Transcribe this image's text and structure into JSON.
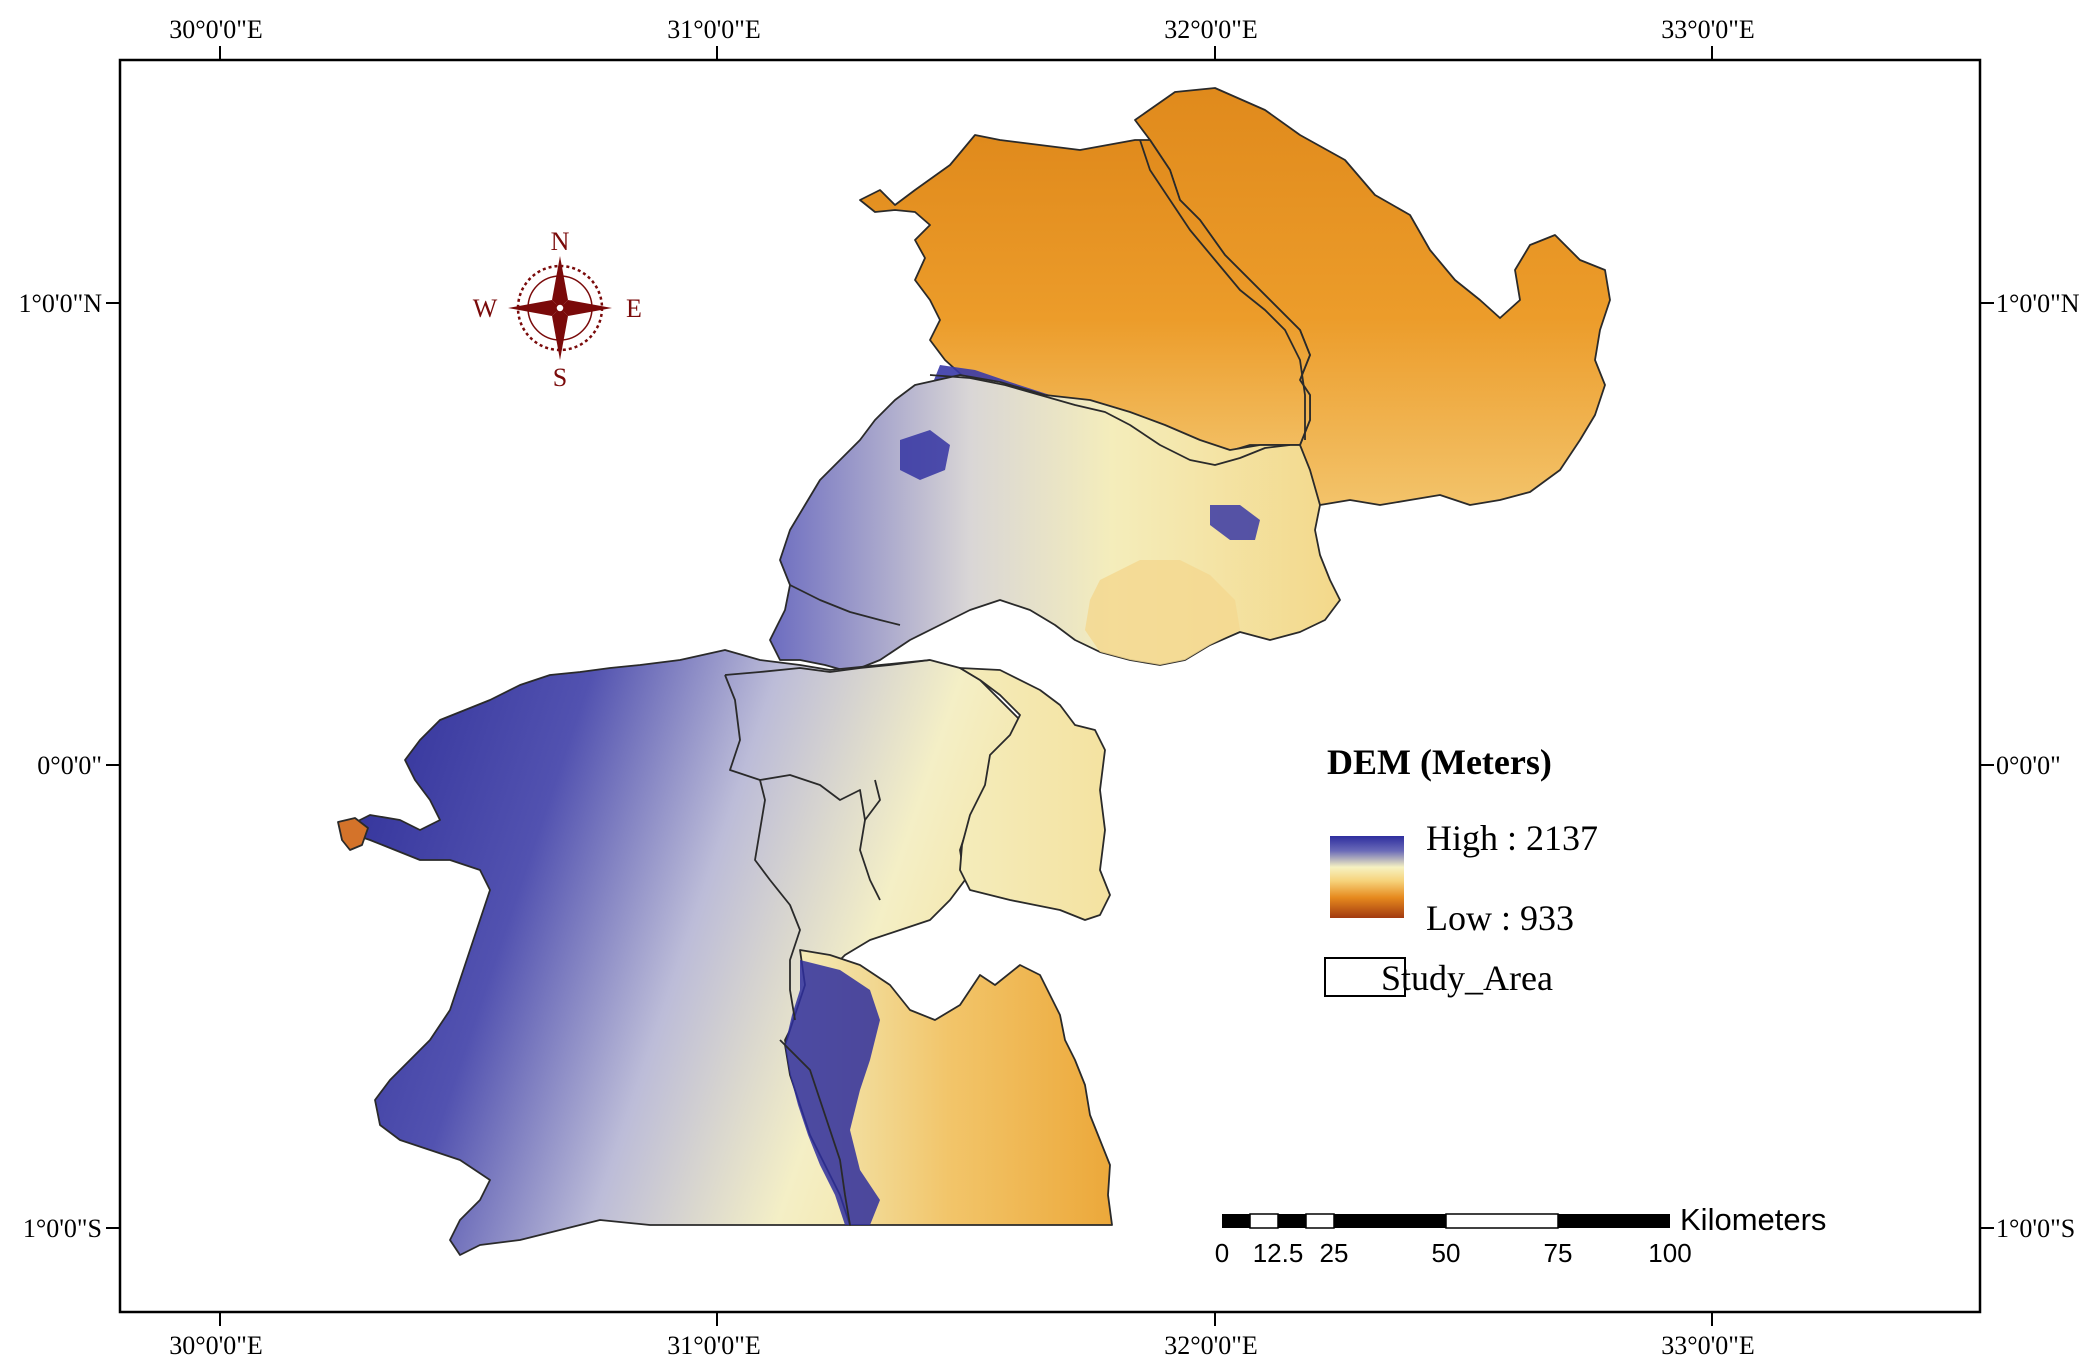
{
  "graticule": {
    "top_labels": [
      "30°0'0\"E",
      "31°0'0\"E",
      "32°0'0\"E",
      "33°0'0\"E"
    ],
    "bottom_labels": [
      "30°0'0\"E",
      "31°0'0\"E",
      "32°0'0\"E",
      "33°0'0\"E"
    ],
    "left_labels": [
      "1°0'0\"N",
      "0°0'0\"",
      "1°0'0\"S"
    ],
    "right_labels": [
      "1°0'0\"N",
      "0°0'0\"",
      "1°0'0\"S"
    ]
  },
  "compass": {
    "n": "N",
    "s": "S",
    "e": "E",
    "w": "W"
  },
  "legend": {
    "title": "DEM (Meters)",
    "high_label": "High : 2137",
    "low_label": "Low : 933",
    "study_area_label": "Study_Area",
    "colors": {
      "high": "#2e2e9e",
      "mid": "#f6f2c2",
      "low_light": "#f0b040",
      "low": "#a23a10"
    }
  },
  "scale_bar": {
    "unit": "Kilometers",
    "ticks": [
      "0",
      "12.5",
      "25",
      "50",
      "75",
      "100"
    ]
  },
  "map_colors": {
    "orange": "#e8931f",
    "orange_light": "#f2b64a",
    "cream": "#f3ecb9",
    "blue": "#3a3aa8",
    "blue_dark": "#24248e",
    "boundary": "#2a2a2a"
  }
}
